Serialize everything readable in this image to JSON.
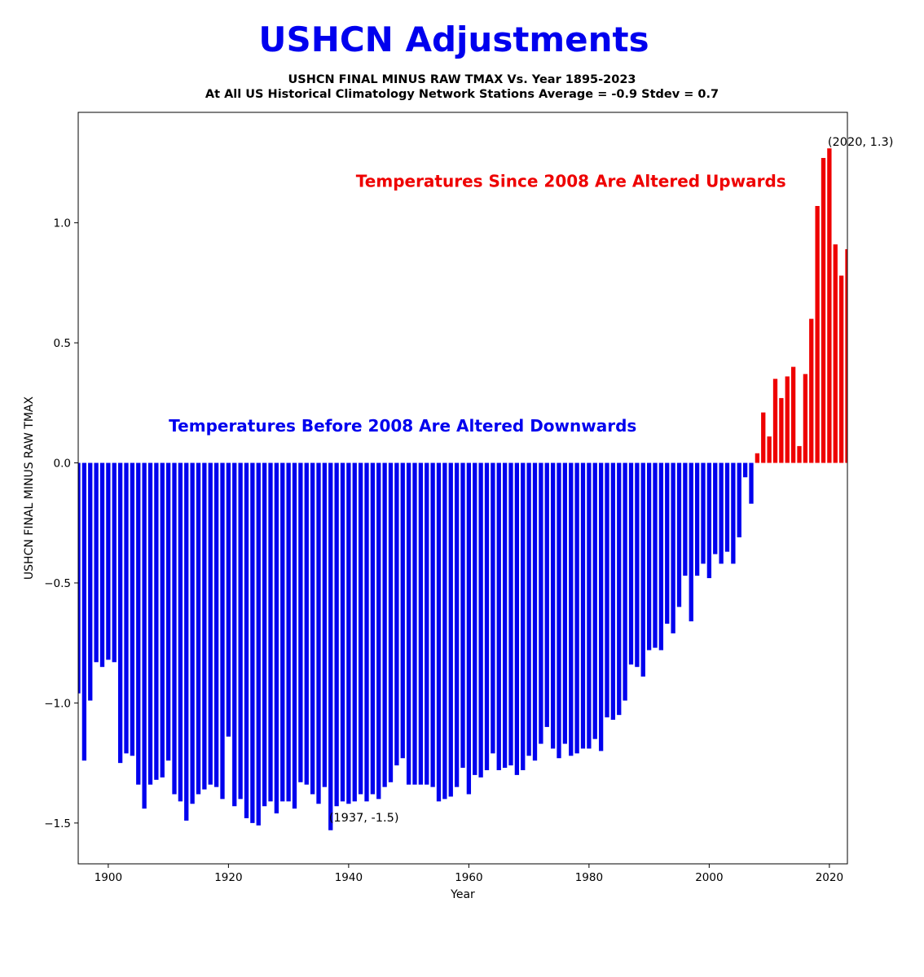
{
  "page_title": "USHCN Adjustments",
  "chart_data": {
    "type": "bar",
    "title": "USHCN FINAL MINUS RAW TMAX Vs. Year 1895-2023",
    "subtitle": "At All US Historical Climatology Network Stations Average = -0.9 Stdev = 0.7",
    "xlabel": "Year",
    "ylabel": "USHCN FINAL MINUS RAW TMAX",
    "xlim": [
      1895,
      2023
    ],
    "ylim": [
      -1.67,
      1.46
    ],
    "x_ticks": [
      1900,
      1920,
      1940,
      1960,
      1980,
      2000,
      2020
    ],
    "x_tick_labels": [
      "1900",
      "1920",
      "1940",
      "1960",
      "1980",
      "2000",
      "2020"
    ],
    "y_ticks": [
      -1.5,
      -1.0,
      -0.5,
      0.0,
      0.5,
      1.0
    ],
    "y_tick_labels": [
      "−1.5",
      "−1.0",
      "−0.5",
      "0.0",
      "0.5",
      "1.0"
    ],
    "grid": false,
    "colors": {
      "negative": "#0000ee",
      "positive": "#ee0000"
    },
    "x": [
      1895,
      1896,
      1897,
      1898,
      1899,
      1900,
      1901,
      1902,
      1903,
      1904,
      1905,
      1906,
      1907,
      1908,
      1909,
      1910,
      1911,
      1912,
      1913,
      1914,
      1915,
      1916,
      1917,
      1918,
      1919,
      1920,
      1921,
      1922,
      1923,
      1924,
      1925,
      1926,
      1927,
      1928,
      1929,
      1930,
      1931,
      1932,
      1933,
      1934,
      1935,
      1936,
      1937,
      1938,
      1939,
      1940,
      1941,
      1942,
      1943,
      1944,
      1945,
      1946,
      1947,
      1948,
      1949,
      1950,
      1951,
      1952,
      1953,
      1954,
      1955,
      1956,
      1957,
      1958,
      1959,
      1960,
      1961,
      1962,
      1963,
      1964,
      1965,
      1966,
      1967,
      1968,
      1969,
      1970,
      1971,
      1972,
      1973,
      1974,
      1975,
      1976,
      1977,
      1978,
      1979,
      1980,
      1981,
      1982,
      1983,
      1984,
      1985,
      1986,
      1987,
      1988,
      1989,
      1990,
      1991,
      1992,
      1993,
      1994,
      1995,
      1996,
      1997,
      1998,
      1999,
      2000,
      2001,
      2002,
      2003,
      2004,
      2005,
      2006,
      2007,
      2008,
      2009,
      2010,
      2011,
      2012,
      2013,
      2014,
      2015,
      2016,
      2017,
      2018,
      2019,
      2020,
      2021,
      2022,
      2023
    ],
    "values": [
      -0.96,
      -1.24,
      -0.99,
      -0.83,
      -0.85,
      -0.82,
      -0.83,
      -1.25,
      -1.21,
      -1.22,
      -1.34,
      -1.44,
      -1.34,
      -1.32,
      -1.31,
      -1.24,
      -1.38,
      -1.41,
      -1.49,
      -1.42,
      -1.38,
      -1.36,
      -1.34,
      -1.35,
      -1.4,
      -1.14,
      -1.43,
      -1.4,
      -1.48,
      -1.5,
      -1.51,
      -1.43,
      -1.41,
      -1.46,
      -1.41,
      -1.41,
      -1.44,
      -1.33,
      -1.34,
      -1.38,
      -1.42,
      -1.35,
      -1.53,
      -1.43,
      -1.41,
      -1.42,
      -1.41,
      -1.38,
      -1.41,
      -1.38,
      -1.4,
      -1.35,
      -1.33,
      -1.26,
      -1.23,
      -1.34,
      -1.34,
      -1.34,
      -1.34,
      -1.35,
      -1.41,
      -1.4,
      -1.39,
      -1.35,
      -1.27,
      -1.38,
      -1.3,
      -1.31,
      -1.28,
      -1.21,
      -1.28,
      -1.27,
      -1.26,
      -1.3,
      -1.28,
      -1.22,
      -1.24,
      -1.17,
      -1.1,
      -1.19,
      -1.23,
      -1.17,
      -1.22,
      -1.21,
      -1.19,
      -1.19,
      -1.15,
      -1.2,
      -1.06,
      -1.07,
      -1.05,
      -0.99,
      -0.84,
      -0.85,
      -0.89,
      -0.78,
      -0.77,
      -0.78,
      -0.67,
      -0.71,
      -0.6,
      -0.47,
      -0.66,
      -0.47,
      -0.42,
      -0.48,
      -0.38,
      -0.42,
      -0.37,
      -0.42,
      -0.31,
      -0.06,
      -0.17,
      0.04,
      0.21,
      0.11,
      0.35,
      0.27,
      0.36,
      0.4,
      0.07,
      0.37,
      0.6,
      1.07,
      1.27,
      1.31,
      0.91,
      0.78,
      0.89
    ],
    "point_annotations": [
      {
        "x": 2020,
        "y": 1.3,
        "text": "(2020, 1.3)"
      },
      {
        "x": 1937,
        "y": -1.5,
        "text": "(1937, -1.5)"
      }
    ],
    "text_annotations": [
      {
        "text": "Temperatures Since 2008 Are Altered Upwards",
        "x": 1977,
        "y": 1.15,
        "color": "#ee0000"
      },
      {
        "text": "Temperatures Before 2008 Are Altered Downwards",
        "x": 1949,
        "y": 0.13,
        "color": "#0000ee"
      }
    ]
  }
}
